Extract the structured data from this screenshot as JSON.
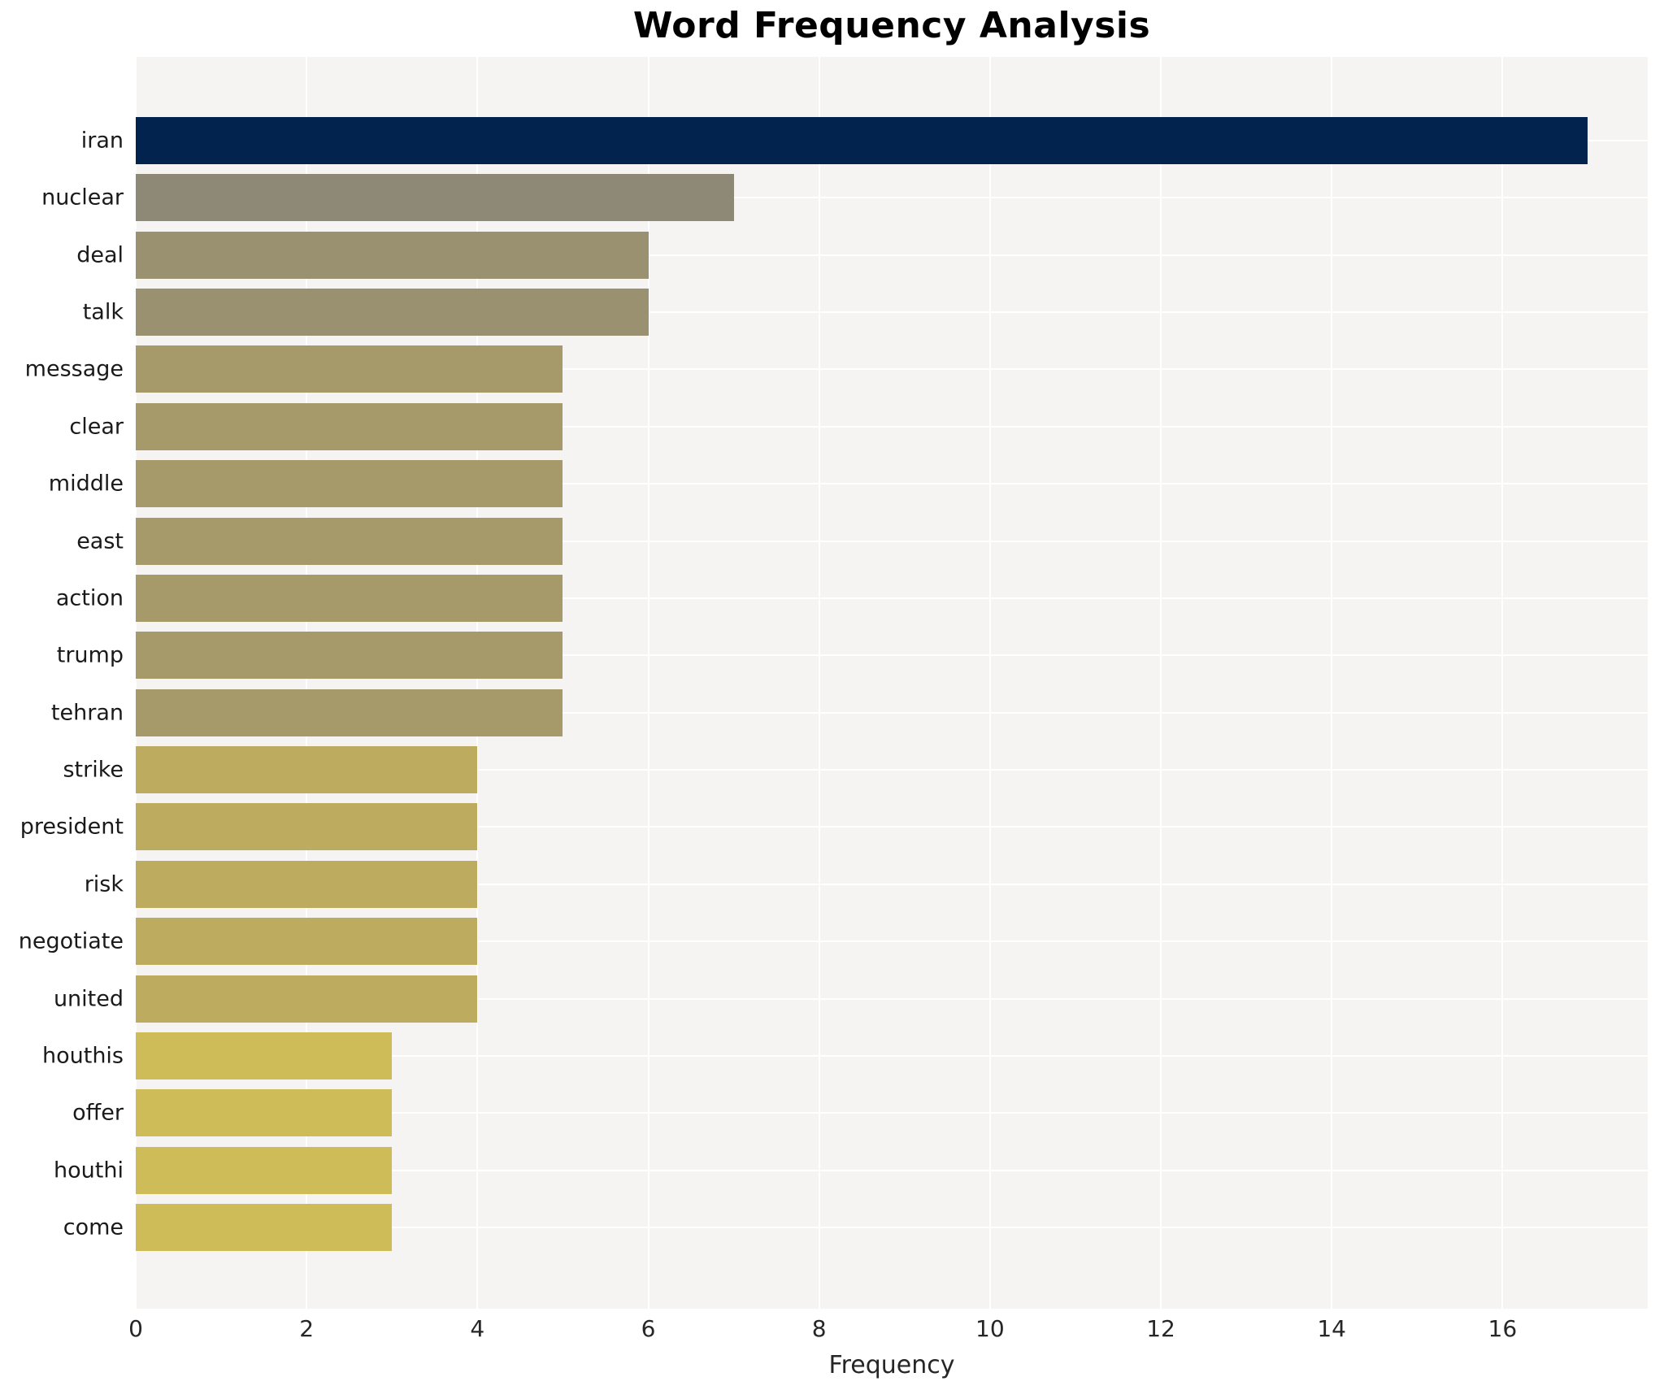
{
  "chart_data": {
    "type": "bar",
    "orientation": "horizontal",
    "title": "Word Frequency Analysis",
    "xlabel": "Frequency",
    "ylabel": "",
    "categories": [
      "iran",
      "nuclear",
      "deal",
      "talk",
      "message",
      "clear",
      "middle",
      "east",
      "action",
      "trump",
      "tehran",
      "strike",
      "president",
      "risk",
      "negotiate",
      "united",
      "houthis",
      "offer",
      "houthi",
      "come"
    ],
    "values": [
      17,
      7,
      6,
      6,
      5,
      5,
      5,
      5,
      5,
      5,
      5,
      4,
      4,
      4,
      4,
      4,
      3,
      3,
      3,
      3
    ],
    "bar_colors": [
      "#02234e",
      "#8e8876",
      "#9a9170",
      "#9a9170",
      "#a69a6b",
      "#a69a6b",
      "#a69a6b",
      "#a69a6b",
      "#a69a6b",
      "#a69a6b",
      "#a69a6b",
      "#bdac60",
      "#bdac60",
      "#bdac60",
      "#bdac60",
      "#bdac60",
      "#cdbc57",
      "#cdbc57",
      "#cdbc57",
      "#cdbc57"
    ],
    "xticks": [
      0,
      2,
      4,
      6,
      8,
      10,
      12,
      14,
      16
    ],
    "xlim": [
      0,
      17.7
    ],
    "grid": true,
    "legend": false,
    "plot_bg": "#f5f4f2",
    "grid_color": "#ffffff",
    "title_color": "#000000",
    "tick_color": "#262626"
  }
}
